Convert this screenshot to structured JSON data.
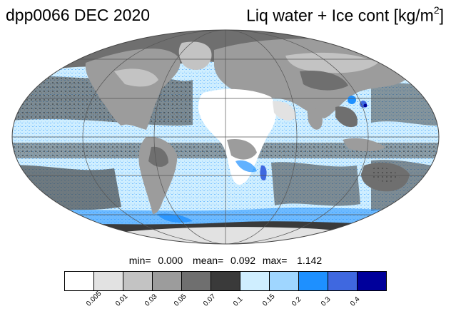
{
  "header": {
    "run_title": "dpp0066 DEC 2020",
    "variable_title": "Liq water + Ice cont [kg/m",
    "variable_unit_exponent": "2",
    "variable_title_close": "]"
  },
  "stats": {
    "min_label": "min=",
    "min_value": "0.000",
    "mean_label": "mean=",
    "mean_value": "0.092",
    "max_label": "max=",
    "max_value": "1.142"
  },
  "colorbar": {
    "colors": [
      "#ffffff",
      "#e2e2e2",
      "#c3c3c3",
      "#9c9c9c",
      "#6f6f6f",
      "#3a3a3a",
      "#cfeeff",
      "#9fd6ff",
      "#1e90ff",
      "#3f68e0",
      "#00009b"
    ],
    "tick_labels": [
      "0.005",
      "0.01",
      "0.03",
      "0.05",
      "0.07",
      "0.1",
      "0.15",
      "0.2",
      "0.3",
      "0.4"
    ]
  },
  "map": {
    "projection": "Mollweide",
    "land_color": "#9a9a9a",
    "ocean_base_color": "#cfeeff"
  }
}
